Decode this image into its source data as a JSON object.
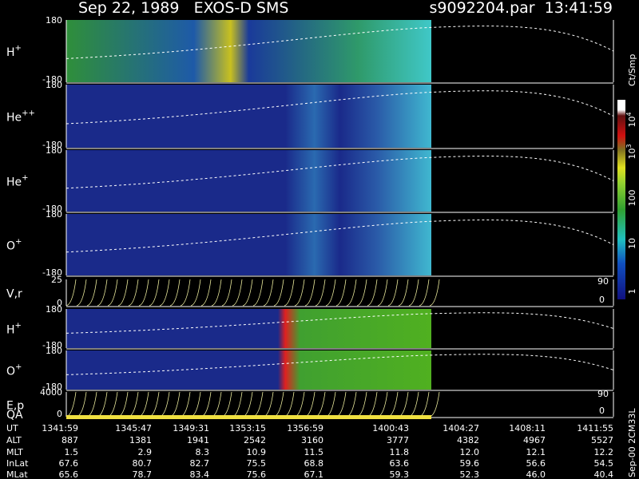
{
  "header": {
    "title": "Sep 22, 1989   EXOS-D SMS",
    "file": "s9092204.par  13:41:59"
  },
  "panels": [
    {
      "label": "H",
      "sup": "+",
      "top": "180",
      "bottom": "-180"
    },
    {
      "label": "He",
      "sup": "++",
      "top": "180",
      "bottom": "-180"
    },
    {
      "label": "He",
      "sup": "+",
      "top": "180",
      "bottom": "-180"
    },
    {
      "label": "O",
      "sup": "+",
      "top": "180",
      "bottom": "-180"
    },
    {
      "label": "V,r",
      "sup": "",
      "top": "25",
      "bottom": "0",
      "right_top": "90",
      "right_bottom": "0"
    },
    {
      "label": "H",
      "sup": "+",
      "top": "180",
      "bottom": "-180"
    },
    {
      "label": "O",
      "sup": "+",
      "top": "180",
      "bottom": "-180"
    },
    {
      "label": "E,p",
      "sup": "",
      "top": "4000",
      "bottom": "0",
      "right_top": "90",
      "right_bottom": "0"
    }
  ],
  "qa_label": "QA",
  "colorbar": {
    "unit": "Ct/Smp",
    "ticks": [
      {
        "base": "10",
        "exp": "4"
      },
      {
        "base": "10",
        "exp": "3"
      },
      {
        "base": "100",
        "exp": ""
      },
      {
        "base": "10",
        "exp": ""
      },
      {
        "base": "1",
        "exp": ""
      }
    ]
  },
  "table": {
    "rows": [
      [
        "UT",
        "1341:59",
        "1345:47",
        "1349:31",
        "1353:15",
        "1356:59",
        "1400:43",
        "1404:27",
        "1408:11",
        "1411:55"
      ],
      [
        "ALT",
        "887",
        "1381",
        "1941",
        "2542",
        "3160",
        "3777",
        "4382",
        "4967",
        "5527"
      ],
      [
        "MLT",
        "1.5",
        "2.9",
        "8.3",
        "10.9",
        "11.5",
        "11.8",
        "12.0",
        "12.1",
        "12.2"
      ],
      [
        "InLat",
        "67.6",
        "80.7",
        "82.7",
        "75.5",
        "68.8",
        "63.6",
        "59.6",
        "56.6",
        "54.5"
      ],
      [
        "MLat",
        "65.6",
        "78.7",
        "83.4",
        "75.6",
        "67.1",
        "59.3",
        "52.3",
        "46.0",
        "40.4"
      ]
    ]
  },
  "footer": "Sep-00 2CM33L"
}
